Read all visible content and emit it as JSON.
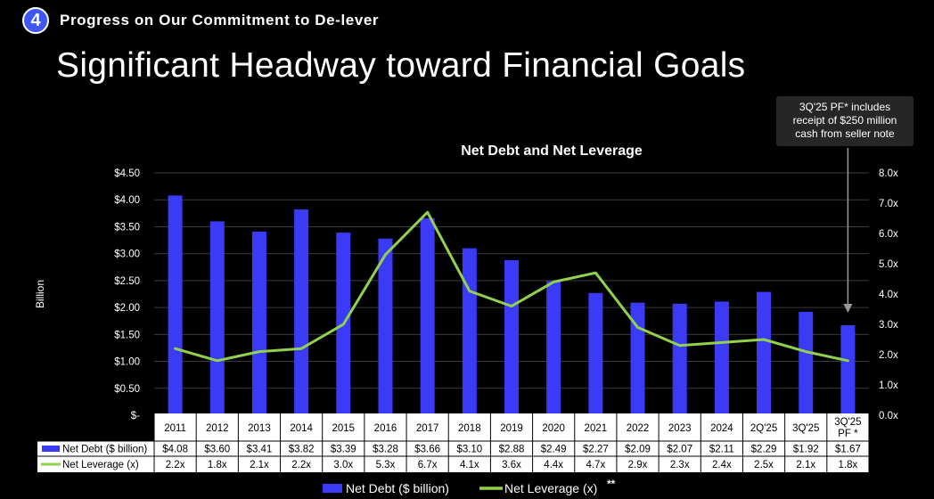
{
  "header": {
    "section_number": "4",
    "section_title": "Progress on Our Commitment to De-lever",
    "page_title": "Significant Headway toward Financial Goals"
  },
  "callout": {
    "lines": [
      "3Q'25 PF* includes",
      "receipt of $250 million",
      "cash from seller note"
    ]
  },
  "colors": {
    "bar": "#3b3bf5",
    "line": "#92d050",
    "callout_bg": "#262626"
  },
  "chart_data": {
    "type": "bar",
    "title": "Net Debt and Net Leverage",
    "ylabel": "Billion",
    "y_left_ticks": [
      "$4.50",
      "$4.00",
      "$3.50",
      "$3.00",
      "$2.50",
      "$2.00",
      "$1.50",
      "$1.00",
      "$0.50",
      "$-"
    ],
    "y_right_ticks": [
      "8.0x",
      "7.0x",
      "6.0x",
      "5.0x",
      "4.0x",
      "3.0x",
      "2.0x",
      "1.0x",
      "0.0x"
    ],
    "ylim_left": [
      0,
      4.5
    ],
    "ylim_right": [
      0,
      8
    ],
    "grid": true,
    "categories": [
      "2011",
      "2012",
      "2013",
      "2014",
      "2015",
      "2016",
      "2017",
      "2018",
      "2019",
      "2020",
      "2021",
      "2022",
      "2023",
      "2024",
      "2Q'25",
      "3Q'25",
      "3Q'25 PF *"
    ],
    "category_lines": [
      [
        "2011"
      ],
      [
        "2012"
      ],
      [
        "2013"
      ],
      [
        "2014"
      ],
      [
        "2015"
      ],
      [
        "2016"
      ],
      [
        "2017"
      ],
      [
        "2018"
      ],
      [
        "2019"
      ],
      [
        "2020"
      ],
      [
        "2021"
      ],
      [
        "2022"
      ],
      [
        "2023"
      ],
      [
        "2024"
      ],
      [
        "2Q'25"
      ],
      [
        "3Q'25"
      ],
      [
        "3Q'25",
        "PF *"
      ]
    ],
    "series": [
      {
        "name": "Net Debt ($ billion)",
        "type": "bar",
        "axis": "left",
        "values": [
          4.08,
          3.6,
          3.41,
          3.82,
          3.39,
          3.28,
          3.66,
          3.1,
          2.88,
          2.49,
          2.27,
          2.09,
          2.07,
          2.11,
          2.29,
          1.92,
          1.67
        ],
        "labels": [
          "$4.08",
          "$3.60",
          "$3.41",
          "$3.82",
          "$3.39",
          "$3.28",
          "$3.66",
          "$3.10",
          "$2.88",
          "$2.49",
          "$2.27",
          "$2.09",
          "$2.07",
          "$2.11",
          "$2.29",
          "$1.92",
          "$1.67"
        ]
      },
      {
        "name": "Net Leverage (x)",
        "type": "line",
        "axis": "right",
        "values": [
          2.2,
          1.8,
          2.1,
          2.2,
          3.0,
          5.3,
          6.7,
          4.1,
          3.6,
          4.4,
          4.7,
          2.9,
          2.3,
          2.4,
          2.5,
          2.1,
          1.8
        ],
        "labels": [
          "2.2x",
          "1.8x",
          "2.1x",
          "2.2x",
          "3.0x",
          "5.3x",
          "6.7x",
          "4.1x",
          "3.6x",
          "4.4x",
          "4.7x",
          "2.9x",
          "2.3x",
          "2.4x",
          "2.5x",
          "2.1x",
          "1.8x"
        ]
      }
    ],
    "legend": {
      "position": "bottom-center",
      "items": [
        "Net Debt ($ billion)",
        "Net Leverage (x)"
      ],
      "line_suffix": "**"
    }
  }
}
